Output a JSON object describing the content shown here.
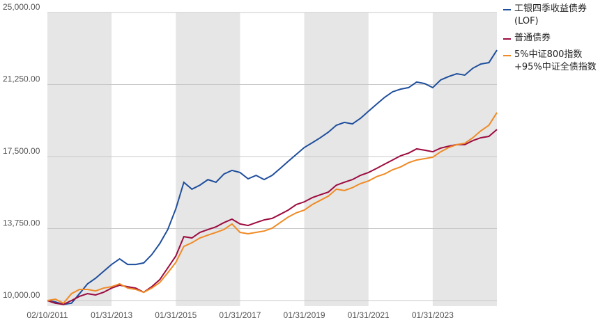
{
  "chart_data": {
    "type": "line",
    "categories": [
      "02/10/2011",
      null,
      null,
      null,
      null,
      null,
      null,
      null,
      "01/31/2013",
      null,
      null,
      null,
      null,
      null,
      null,
      null,
      "01/31/2015",
      null,
      null,
      null,
      null,
      null,
      null,
      null,
      "01/31/2017",
      null,
      null,
      null,
      null,
      null,
      null,
      null,
      "01/31/2019",
      null,
      null,
      null,
      null,
      null,
      null,
      null,
      "01/31/2021",
      null,
      null,
      null,
      null,
      null,
      null,
      null,
      "01/31/2023",
      null,
      null,
      null,
      null,
      null,
      null,
      null,
      null
    ],
    "series": [
      {
        "name": "工银四季收益债券(LOF)",
        "color": "#1f4e9c",
        "values": [
          10000,
          9930,
          9800,
          9860,
          10360,
          10870,
          11160,
          11520,
          11880,
          12170,
          11880,
          11880,
          11960,
          12390,
          12970,
          13700,
          14780,
          16160,
          15800,
          16010,
          16300,
          16160,
          16590,
          16780,
          16670,
          16340,
          16520,
          16300,
          16520,
          16880,
          17250,
          17610,
          17970,
          18220,
          18480,
          18770,
          19130,
          19280,
          19200,
          19490,
          19860,
          20220,
          20580,
          20870,
          21010,
          21090,
          21380,
          21300,
          21090,
          21490,
          21670,
          21810,
          21740,
          22100,
          22320,
          22390,
          23040
        ]
      },
      {
        "name": "普通债券",
        "color": "#9c0b3f",
        "values": [
          10000,
          9860,
          9800,
          10000,
          10220,
          10360,
          10290,
          10430,
          10650,
          10800,
          10720,
          10650,
          10430,
          10720,
          11090,
          11700,
          12320,
          13330,
          13260,
          13550,
          13700,
          13840,
          14060,
          14240,
          13990,
          13910,
          14060,
          14200,
          14280,
          14490,
          14710,
          15000,
          15140,
          15360,
          15510,
          15650,
          16010,
          16160,
          16300,
          16520,
          16670,
          16880,
          17100,
          17320,
          17540,
          17680,
          17900,
          17830,
          17750,
          17940,
          18040,
          18120,
          18120,
          18330,
          18480,
          18550,
          18910
        ]
      },
      {
        "name": "5%中证800指数+95%中证全债指数",
        "color": "#f08a24",
        "values": [
          10000,
          10070,
          9860,
          10360,
          10580,
          10580,
          10500,
          10650,
          10720,
          10870,
          10650,
          10580,
          10430,
          10650,
          10940,
          11450,
          11990,
          12820,
          13010,
          13260,
          13410,
          13550,
          13700,
          13990,
          13550,
          13480,
          13550,
          13620,
          13770,
          14060,
          14350,
          14570,
          14710,
          15000,
          15220,
          15440,
          15800,
          15730,
          15880,
          16090,
          16230,
          16450,
          16590,
          16810,
          16960,
          17180,
          17320,
          17390,
          17460,
          17750,
          17970,
          18120,
          18190,
          18480,
          18840,
          19130,
          19790
        ]
      }
    ],
    "ylim": [
      10000,
      25000
    ],
    "yticks": [
      {
        "value": 10000,
        "label": "10,000.00"
      },
      {
        "value": 13750,
        "label": "13,750.00"
      },
      {
        "value": 17500,
        "label": "17,500.00"
      },
      {
        "value": 21250,
        "label": "21,250.00"
      },
      {
        "value": 25000,
        "label": "25,000.00"
      }
    ],
    "grid": true
  }
}
